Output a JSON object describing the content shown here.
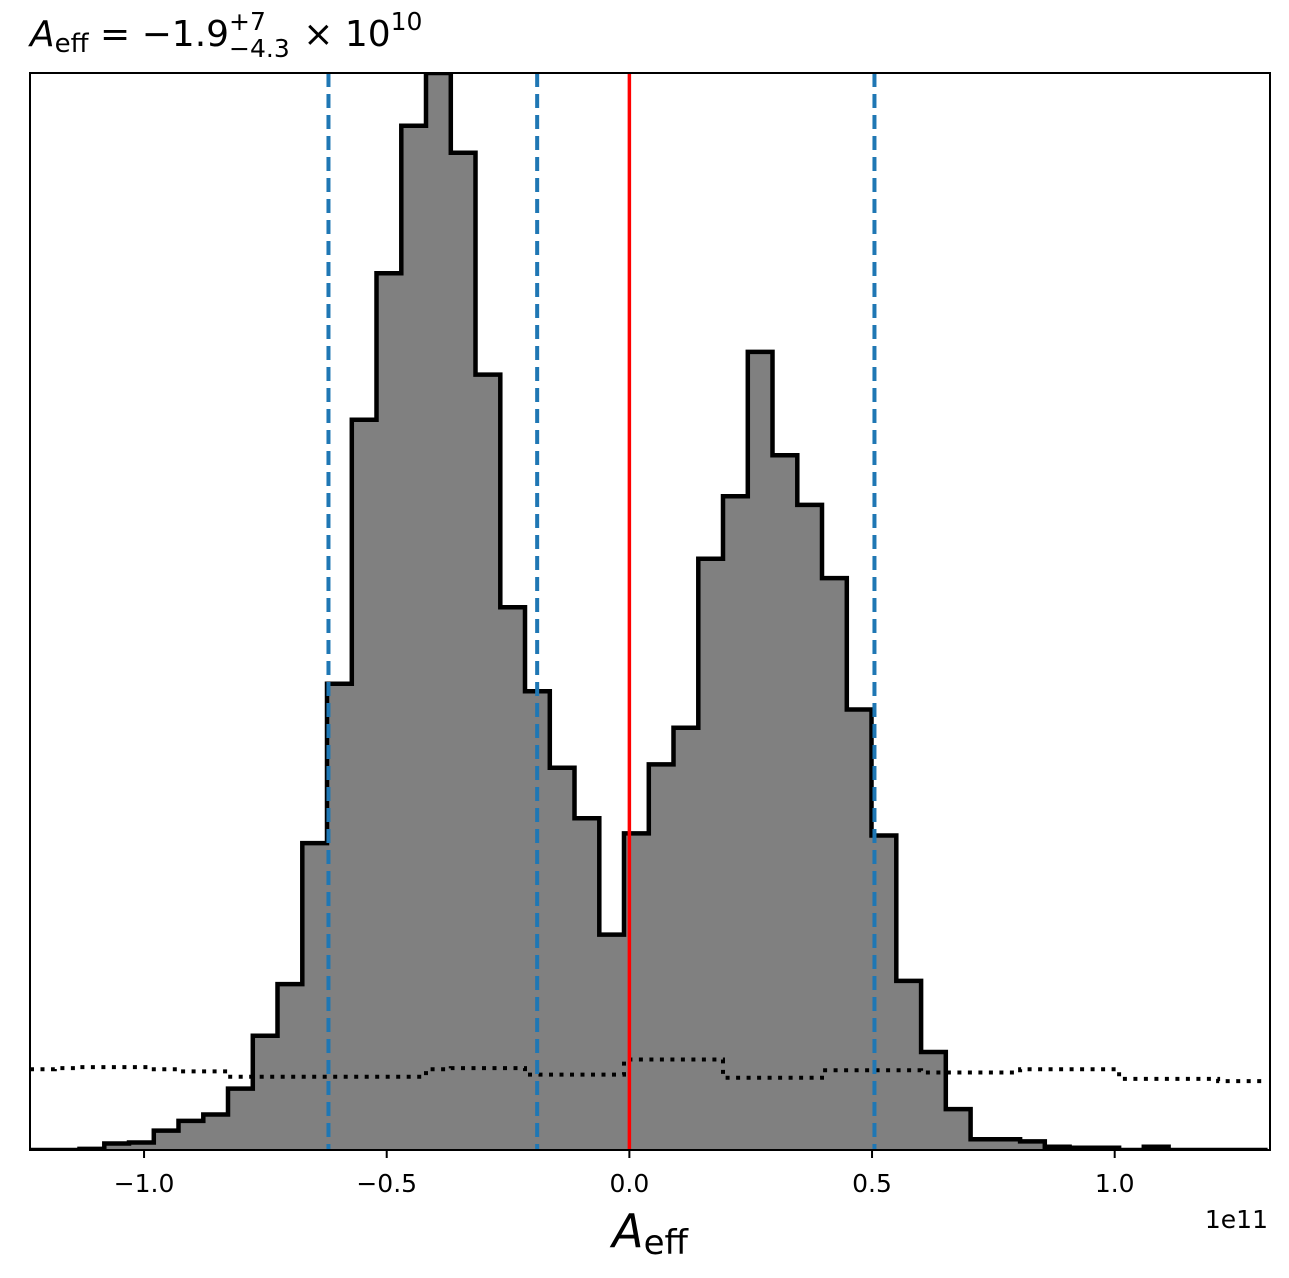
{
  "chart_data": {
    "type": "histogram",
    "title": {
      "symbol": "A",
      "subscript": "eff",
      "equals": " = ",
      "median": "−1.9",
      "upper": "+7",
      "lower": "−4.3",
      "times": " × 10",
      "exponent": "10"
    },
    "xlabel": {
      "symbol": "A",
      "subscript": "eff"
    },
    "x_offset_label": "1e11",
    "xlim": [
      -1.235,
      1.32
    ],
    "x_ticks": [
      -1.0,
      -0.5,
      0.0,
      0.5,
      1.0
    ],
    "x_tick_labels": [
      "−1.0",
      "−0.5",
      "0.0",
      "0.5",
      "1.0"
    ],
    "ylim": [
      0,
      1000
    ],
    "y_ticks_shown": false,
    "bin_edges": [
      -1.235,
      -1.184,
      -1.133,
      -1.082,
      -1.031,
      -0.98,
      -0.929,
      -0.878,
      -0.827,
      -0.776,
      -0.725,
      -0.674,
      -0.623,
      -0.572,
      -0.521,
      -0.47,
      -0.419,
      -0.368,
      -0.317,
      -0.266,
      -0.215,
      -0.164,
      -0.113,
      -0.062,
      -0.011,
      0.04,
      0.091,
      0.142,
      0.193,
      0.244,
      0.295,
      0.346,
      0.397,
      0.448,
      0.499,
      0.55,
      0.601,
      0.652,
      0.703,
      0.754,
      0.805,
      0.856,
      0.907,
      0.958,
      1.009,
      1.06,
      1.111,
      1.162,
      1.213,
      1.264,
      1.315
    ],
    "posterior_counts": [
      0,
      0,
      1,
      6,
      7,
      18,
      27,
      33,
      57,
      106,
      154,
      285,
      433,
      678,
      814,
      951,
      1000,
      926,
      720,
      504,
      426,
      355,
      308,
      200,
      294,
      358,
      392,
      549,
      607,
      741,
      645,
      599,
      531,
      409,
      292,
      157,
      91,
      38,
      10,
      10,
      8,
      3,
      2,
      2,
      0,
      3,
      0,
      0,
      0,
      0
    ],
    "prior_counts": [
      75,
      76,
      77,
      77,
      77,
      75,
      73,
      73,
      68,
      68,
      68,
      68,
      68,
      68,
      68,
      68,
      75,
      76,
      76,
      76,
      70,
      70,
      70,
      70,
      84,
      84,
      84,
      84,
      67,
      67,
      67,
      67,
      74,
      74,
      74,
      74,
      72,
      72,
      72,
      72,
      75,
      75,
      75,
      75,
      66,
      66,
      66,
      66,
      64,
      64
    ],
    "quantile_lines": [
      -0.62,
      -0.19,
      0.505
    ],
    "true_value_line": 0.0,
    "colors": {
      "hist_fill": "#808080",
      "hist_edge": "#000000",
      "quantiles": "#1f77b4",
      "true_value": "#ff0000",
      "prior": "#000000"
    },
    "grid": false
  }
}
